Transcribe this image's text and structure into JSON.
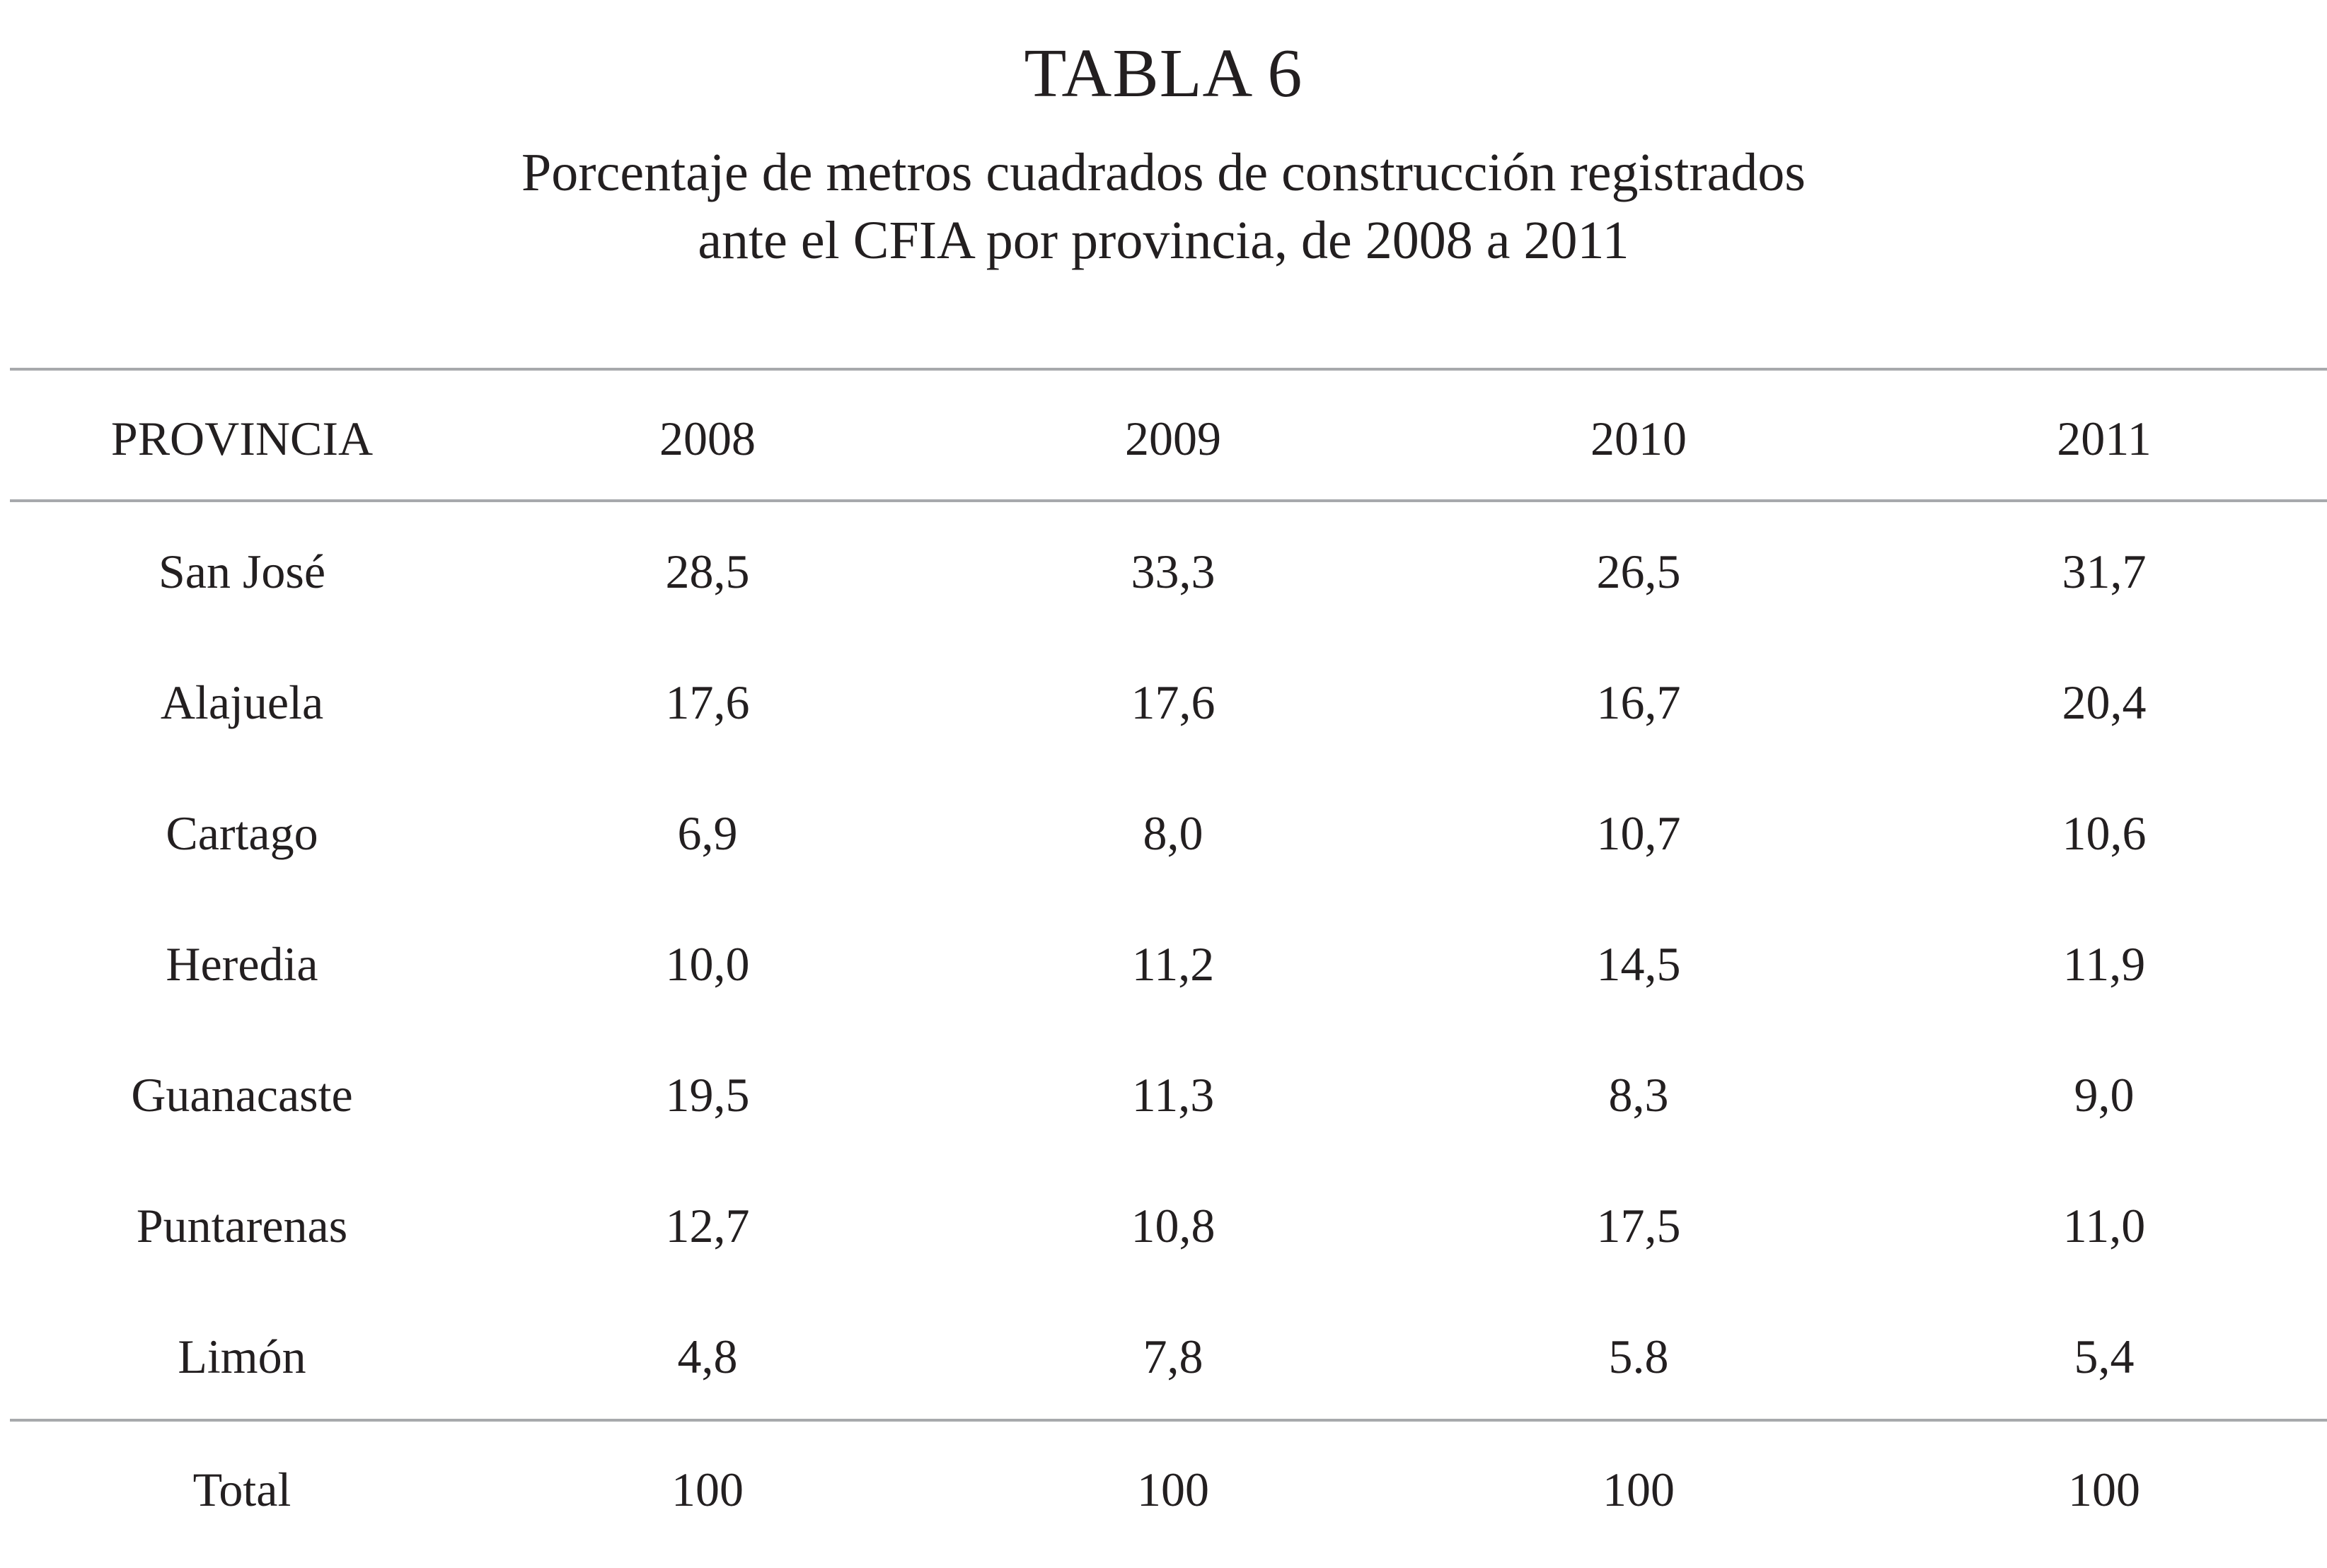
{
  "table": {
    "title": "TABLA 6",
    "subtitle_line1": "Porcentaje de metros cuadrados de construcción registrados",
    "subtitle_line2": "ante el CFIA por provincia, de 2008 a 2011",
    "headers": [
      "PROVINCIA",
      "2008",
      "2009",
      "2010",
      "2011"
    ],
    "rows": [
      [
        "San José",
        "28,5",
        "33,3",
        "26,5",
        "31,7"
      ],
      [
        "Alajuela",
        "17,6",
        "17,6",
        "16,7",
        "20,4"
      ],
      [
        "Cartago",
        "6,9",
        "8,0",
        "10,7",
        "10,6"
      ],
      [
        "Heredia",
        "10,0",
        "11,2",
        "14,5",
        "11,9"
      ],
      [
        "Guanacaste",
        "19,5",
        "11,3",
        "8,3",
        "9,0"
      ],
      [
        "Puntarenas",
        "12,7",
        "10,8",
        "17,5",
        "11,0"
      ],
      [
        "Limón",
        "4,8",
        "7,8",
        "5.8",
        "5,4"
      ]
    ],
    "total": [
      "Total",
      "100",
      "100",
      "100",
      "100"
    ]
  }
}
